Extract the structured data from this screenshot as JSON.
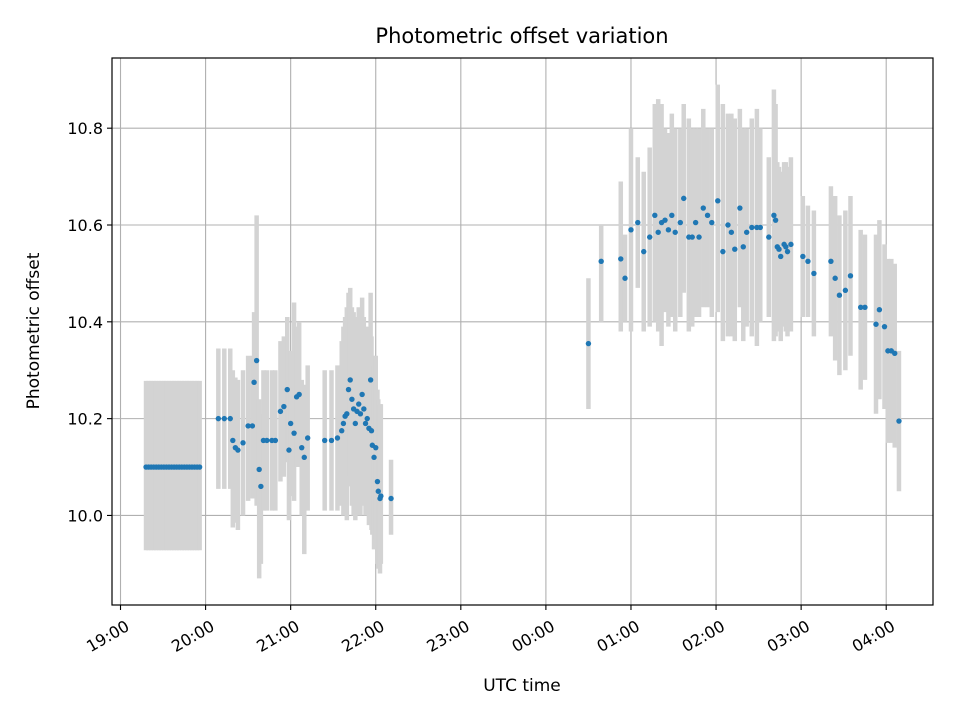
{
  "chart_data": {
    "type": "scatter",
    "title": "Photometric offset variation",
    "xlabel": "UTC time",
    "ylabel": "Photometric offset",
    "x_unit": "hours",
    "xlim": [
      -0.1,
      9.55
    ],
    "ylim": [
      9.815,
      10.945
    ],
    "x_ticks": [
      0,
      1,
      2,
      3,
      4,
      5,
      6,
      7,
      8,
      9
    ],
    "x_tick_labels": [
      "19:00",
      "20:00",
      "21:00",
      "22:00",
      "23:00",
      "00:00",
      "01:00",
      "02:00",
      "03:00",
      "04:00"
    ],
    "y_ticks": [
      10.0,
      10.2,
      10.4,
      10.6,
      10.8
    ],
    "y_tick_labels": [
      "10.0",
      "10.2",
      "10.4",
      "10.6",
      "10.8"
    ],
    "grid": true,
    "colors": {
      "points": "#1f77b4",
      "error_bars": "#d3d3d3",
      "grid": "#b0b0b0"
    },
    "series": [
      {
        "points": [
          [
            0.3,
            10.1,
            10.278,
            9.928
          ],
          [
            0.33,
            10.1,
            10.278,
            9.928
          ],
          [
            0.36,
            10.1,
            10.278,
            9.928
          ],
          [
            0.39,
            10.1,
            10.278,
            9.928
          ],
          [
            0.42,
            10.1,
            10.278,
            9.928
          ],
          [
            0.45,
            10.1,
            10.278,
            9.928
          ],
          [
            0.48,
            10.1,
            10.278,
            9.928
          ],
          [
            0.51,
            10.1,
            10.278,
            9.928
          ],
          [
            0.54,
            10.1,
            10.278,
            9.928
          ],
          [
            0.57,
            10.1,
            10.278,
            9.928
          ],
          [
            0.6,
            10.1,
            10.278,
            9.928
          ],
          [
            0.63,
            10.1,
            10.278,
            9.928
          ],
          [
            0.66,
            10.1,
            10.278,
            9.928
          ],
          [
            0.69,
            10.1,
            10.278,
            9.928
          ],
          [
            0.72,
            10.1,
            10.278,
            9.928
          ],
          [
            0.75,
            10.1,
            10.278,
            9.928
          ],
          [
            0.78,
            10.1,
            10.278,
            9.928
          ],
          [
            0.81,
            10.1,
            10.278,
            9.928
          ],
          [
            0.84,
            10.1,
            10.278,
            9.928
          ],
          [
            0.87,
            10.1,
            10.278,
            9.928
          ],
          [
            0.9,
            10.1,
            10.278,
            9.928
          ],
          [
            0.93,
            10.1,
            10.278,
            9.928
          ],
          [
            1.15,
            10.2,
            10.345,
            10.055
          ],
          [
            1.22,
            10.2,
            10.345,
            10.055
          ],
          [
            1.29,
            10.2,
            10.345,
            10.055
          ],
          [
            1.32,
            10.155,
            10.3,
            9.975
          ],
          [
            1.35,
            10.14,
            10.285,
            9.985
          ],
          [
            1.38,
            10.135,
            10.28,
            9.97
          ],
          [
            1.44,
            10.15,
            10.3,
            10.0
          ],
          [
            1.5,
            10.185,
            10.33,
            10.03
          ],
          [
            1.55,
            10.185,
            10.33,
            10.035
          ],
          [
            1.57,
            10.275,
            10.42,
            10.13
          ],
          [
            1.6,
            10.32,
            10.62,
            10.02
          ],
          [
            1.63,
            10.095,
            10.24,
            9.87
          ],
          [
            1.65,
            10.06,
            10.21,
            9.9
          ],
          [
            1.68,
            10.155,
            10.3,
            10.01
          ],
          [
            1.72,
            10.155,
            10.3,
            10.01
          ],
          [
            1.78,
            10.155,
            10.3,
            10.01
          ],
          [
            1.82,
            10.155,
            10.3,
            10.01
          ],
          [
            1.88,
            10.215,
            10.36,
            10.07
          ],
          [
            1.92,
            10.225,
            10.37,
            10.08
          ],
          [
            1.96,
            10.26,
            10.41,
            10.11
          ],
          [
            1.98,
            10.135,
            10.28,
            9.99
          ],
          [
            2.0,
            10.19,
            10.34,
            10.04
          ],
          [
            2.04,
            10.17,
            10.44,
            10.03
          ],
          [
            2.07,
            10.245,
            10.39,
            10.1
          ],
          [
            2.1,
            10.25,
            10.4,
            10.1
          ],
          [
            2.13,
            10.14,
            10.28,
            10.0
          ],
          [
            2.16,
            10.12,
            10.27,
            9.92
          ],
          [
            2.2,
            10.16,
            10.31,
            10.01
          ],
          [
            2.4,
            10.155,
            10.3,
            10.01
          ],
          [
            2.48,
            10.155,
            10.3,
            10.01
          ],
          [
            2.55,
            10.16,
            10.31,
            10.01
          ],
          [
            2.6,
            10.175,
            10.36,
            10.02
          ],
          [
            2.62,
            10.19,
            10.39,
            10.0
          ],
          [
            2.64,
            10.205,
            10.41,
            10.0
          ],
          [
            2.66,
            10.21,
            10.43,
            9.99
          ],
          [
            2.68,
            10.26,
            10.46,
            10.06
          ],
          [
            2.7,
            10.28,
            10.47,
            10.08
          ],
          [
            2.72,
            10.24,
            10.43,
            10.02
          ],
          [
            2.74,
            10.22,
            10.42,
            10.0
          ],
          [
            2.76,
            10.19,
            10.39,
            9.99
          ],
          [
            2.78,
            10.215,
            10.41,
            10.0
          ],
          [
            2.8,
            10.23,
            10.43,
            10.02
          ],
          [
            2.82,
            10.21,
            10.41,
            10.0
          ],
          [
            2.84,
            10.25,
            10.45,
            10.05
          ],
          [
            2.86,
            10.22,
            10.41,
            10.02
          ],
          [
            2.88,
            10.19,
            10.38,
            10.0
          ],
          [
            2.9,
            10.2,
            10.39,
            10.0
          ],
          [
            2.92,
            10.18,
            10.37,
            9.98
          ],
          [
            2.94,
            10.28,
            10.46,
            10.09
          ],
          [
            2.95,
            10.175,
            10.37,
            9.97
          ],
          [
            2.96,
            10.145,
            10.33,
            9.96
          ],
          [
            2.98,
            10.12,
            10.31,
            9.93
          ],
          [
            3.0,
            10.14,
            10.33,
            9.95
          ],
          [
            3.02,
            10.07,
            10.26,
            9.9
          ],
          [
            3.03,
            10.05,
            10.24,
            9.89
          ],
          [
            3.05,
            10.035,
            10.23,
            9.88
          ],
          [
            3.06,
            10.04,
            10.23,
            9.9
          ],
          [
            3.18,
            10.035,
            10.115,
            9.96
          ],
          [
            5.5,
            10.355,
            10.49,
            10.22
          ],
          [
            5.65,
            10.525,
            10.6,
            10.4
          ],
          [
            5.88,
            10.53,
            10.69,
            10.38
          ],
          [
            5.93,
            10.49,
            10.58,
            10.4
          ],
          [
            6.0,
            10.59,
            10.8,
            10.38
          ],
          [
            6.08,
            10.605,
            10.74,
            10.47
          ],
          [
            6.15,
            10.545,
            10.71,
            10.38
          ],
          [
            6.22,
            10.575,
            10.76,
            10.39
          ],
          [
            6.28,
            10.62,
            10.85,
            10.4
          ],
          [
            6.32,
            10.585,
            10.86,
            10.38
          ],
          [
            6.36,
            10.605,
            10.85,
            10.35
          ],
          [
            6.4,
            10.61,
            10.8,
            10.42
          ],
          [
            6.44,
            10.59,
            10.79,
            10.39
          ],
          [
            6.48,
            10.62,
            10.83,
            10.41
          ],
          [
            6.52,
            10.585,
            10.8,
            10.38
          ],
          [
            6.58,
            10.605,
            10.8,
            10.41
          ],
          [
            6.62,
            10.655,
            10.85,
            10.46
          ],
          [
            6.68,
            10.575,
            10.82,
            10.38
          ],
          [
            6.72,
            10.575,
            10.8,
            10.39
          ],
          [
            6.76,
            10.605,
            10.8,
            10.41
          ],
          [
            6.8,
            10.575,
            10.8,
            10.41
          ],
          [
            6.85,
            10.635,
            10.84,
            10.43
          ],
          [
            6.9,
            10.62,
            10.8,
            10.43
          ],
          [
            6.95,
            10.605,
            10.8,
            10.41
          ],
          [
            7.02,
            10.65,
            10.89,
            10.42
          ],
          [
            7.08,
            10.545,
            10.85,
            10.36
          ],
          [
            7.14,
            10.6,
            10.83,
            10.37
          ],
          [
            7.18,
            10.585,
            10.83,
            10.37
          ],
          [
            7.22,
            10.55,
            10.82,
            10.36
          ],
          [
            7.28,
            10.635,
            10.84,
            10.43
          ],
          [
            7.32,
            10.555,
            10.8,
            10.36
          ],
          [
            7.36,
            10.585,
            10.8,
            10.39
          ],
          [
            7.42,
            10.595,
            10.82,
            10.37
          ],
          [
            7.48,
            10.595,
            10.84,
            10.35
          ],
          [
            7.52,
            10.595,
            10.8,
            10.4
          ],
          [
            7.62,
            10.575,
            10.74,
            10.41
          ],
          [
            7.68,
            10.62,
            10.88,
            10.36
          ],
          [
            7.7,
            10.61,
            10.85,
            10.37
          ],
          [
            7.72,
            10.555,
            10.73,
            10.38
          ],
          [
            7.74,
            10.55,
            10.72,
            10.38
          ],
          [
            7.76,
            10.535,
            10.71,
            10.36
          ],
          [
            7.8,
            10.56,
            10.73,
            10.39
          ],
          [
            7.82,
            10.555,
            10.73,
            10.38
          ],
          [
            7.84,
            10.545,
            10.72,
            10.37
          ],
          [
            7.88,
            10.56,
            10.74,
            10.38
          ],
          [
            8.02,
            10.535,
            10.66,
            10.41
          ],
          [
            8.08,
            10.525,
            10.64,
            10.41
          ],
          [
            8.15,
            10.5,
            10.63,
            10.37
          ],
          [
            8.35,
            10.525,
            10.68,
            10.37
          ],
          [
            8.4,
            10.49,
            10.66,
            10.32
          ],
          [
            8.45,
            10.455,
            10.62,
            10.29
          ],
          [
            8.52,
            10.465,
            10.63,
            10.3
          ],
          [
            8.58,
            10.495,
            10.66,
            10.33
          ],
          [
            8.7,
            10.43,
            10.59,
            10.26
          ],
          [
            8.75,
            10.43,
            10.58,
            10.28
          ],
          [
            8.88,
            10.395,
            10.58,
            10.21
          ],
          [
            8.92,
            10.425,
            10.61,
            10.24
          ],
          [
            8.98,
            10.39,
            10.56,
            10.22
          ],
          [
            9.02,
            10.34,
            10.53,
            10.15
          ],
          [
            9.06,
            10.34,
            10.53,
            10.15
          ],
          [
            9.1,
            10.335,
            10.52,
            10.14
          ],
          [
            9.15,
            10.195,
            10.34,
            10.05
          ]
        ]
      }
    ]
  }
}
